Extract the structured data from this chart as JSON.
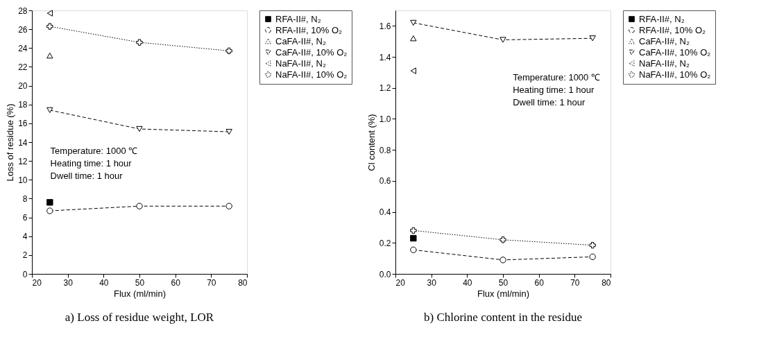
{
  "chart_data": [
    {
      "type": "line",
      "title": "a) Loss of residue weight, LOR",
      "xlabel": "Flux (ml/min)",
      "ylabel": "Loss of residue (%)",
      "xlim": [
        20,
        80
      ],
      "xticks": [
        20,
        30,
        40,
        50,
        60,
        70,
        80
      ],
      "ylim": [
        0,
        28
      ],
      "yticks": [
        0,
        2,
        4,
        6,
        8,
        10,
        12,
        14,
        16,
        18,
        20,
        22,
        24,
        26,
        28
      ],
      "grid": false,
      "legend": "right",
      "annotations": [
        "Temperature: 1000 ℃",
        "Heating time: 1 hour",
        "Dwell time:    1 hour"
      ],
      "series": [
        {
          "name": "RFA-II#, N₂",
          "color": "#000000",
          "marker": "square",
          "line_style": "solid",
          "x": [
            25
          ],
          "values": [
            7.6
          ]
        },
        {
          "name": "RFA-II#, 10% O₂",
          "color": "#000000",
          "marker": "circle",
          "line_style": "dashed",
          "x": [
            25,
            50,
            75
          ],
          "values": [
            6.7,
            7.2,
            7.2
          ]
        },
        {
          "name": "CaFA-II#, N₂",
          "color": "#000000",
          "marker": "triangle",
          "line_style": "dotted",
          "x": [
            25
          ],
          "values": [
            23.2
          ]
        },
        {
          "name": "CaFA-II#, 10% O₂",
          "color": "#000000",
          "marker": "triangle-down",
          "line_style": "dashed",
          "x": [
            25,
            50,
            75
          ],
          "values": [
            17.4,
            15.4,
            15.1
          ]
        },
        {
          "name": "NaFA-II#, N₂",
          "color": "#000000",
          "marker": "triangle-left",
          "line_style": "dotted",
          "x": [
            25
          ],
          "values": [
            27.7
          ]
        },
        {
          "name": "NaFA-II#, 10% O₂",
          "color": "#000000",
          "marker": "cross",
          "line_style": "dotted",
          "x": [
            25,
            50,
            75
          ],
          "values": [
            26.3,
            24.6,
            23.7
          ]
        }
      ]
    },
    {
      "type": "line",
      "title": "b) Chlorine content in the residue",
      "xlabel": "Flux (ml/min)",
      "ylabel": "Cl content (%)",
      "xlim": [
        20,
        80
      ],
      "xticks": [
        20,
        30,
        40,
        50,
        60,
        70,
        80
      ],
      "ylim": [
        0,
        1.7
      ],
      "yticks": [
        {
          "value": 0,
          "label": "0.0"
        },
        {
          "value": 0.2,
          "label": "0.2"
        },
        {
          "value": 0.4,
          "label": "0.4"
        },
        {
          "value": 0.6,
          "label": "0.6"
        },
        {
          "value": 0.8,
          "label": "0.8"
        },
        {
          "value": 1.0,
          "label": "1.0"
        },
        {
          "value": 1.2,
          "label": "1.2"
        },
        {
          "value": 1.4,
          "label": "1.4"
        },
        {
          "value": 1.6,
          "label": "1.6"
        }
      ],
      "grid": false,
      "legend": "right",
      "annotations": [
        "Temperature: 1000 ℃",
        "Heating time: 1 hour",
        "Dwell time:    1 hour"
      ],
      "series": [
        {
          "name": "RFA-II#, N₂",
          "color": "#000000",
          "marker": "square",
          "line_style": "solid",
          "x": [
            25
          ],
          "values": [
            0.23
          ]
        },
        {
          "name": "RFA-II#, 10% O₂",
          "color": "#000000",
          "marker": "circle",
          "line_style": "dashed",
          "x": [
            25,
            50,
            75
          ],
          "values": [
            0.155,
            0.09,
            0.11
          ]
        },
        {
          "name": "CaFA-II#, N₂",
          "color": "#000000",
          "marker": "triangle",
          "line_style": "dotted",
          "x": [
            25
          ],
          "values": [
            1.52
          ]
        },
        {
          "name": "CaFA-II#, 10% O₂",
          "color": "#000000",
          "marker": "triangle-down",
          "line_style": "dashed",
          "x": [
            25,
            50,
            75
          ],
          "values": [
            1.62,
            1.51,
            1.52
          ]
        },
        {
          "name": "NaFA-II#, N₂",
          "color": "#000000",
          "marker": "triangle-left",
          "line_style": "dotted",
          "x": [
            25
          ],
          "values": [
            1.31
          ]
        },
        {
          "name": "NaFA-II#, 10% O₂",
          "color": "#000000",
          "marker": "cross",
          "line_style": "dotted",
          "x": [
            25,
            50,
            75
          ],
          "values": [
            0.28,
            0.22,
            0.185
          ]
        }
      ]
    }
  ]
}
